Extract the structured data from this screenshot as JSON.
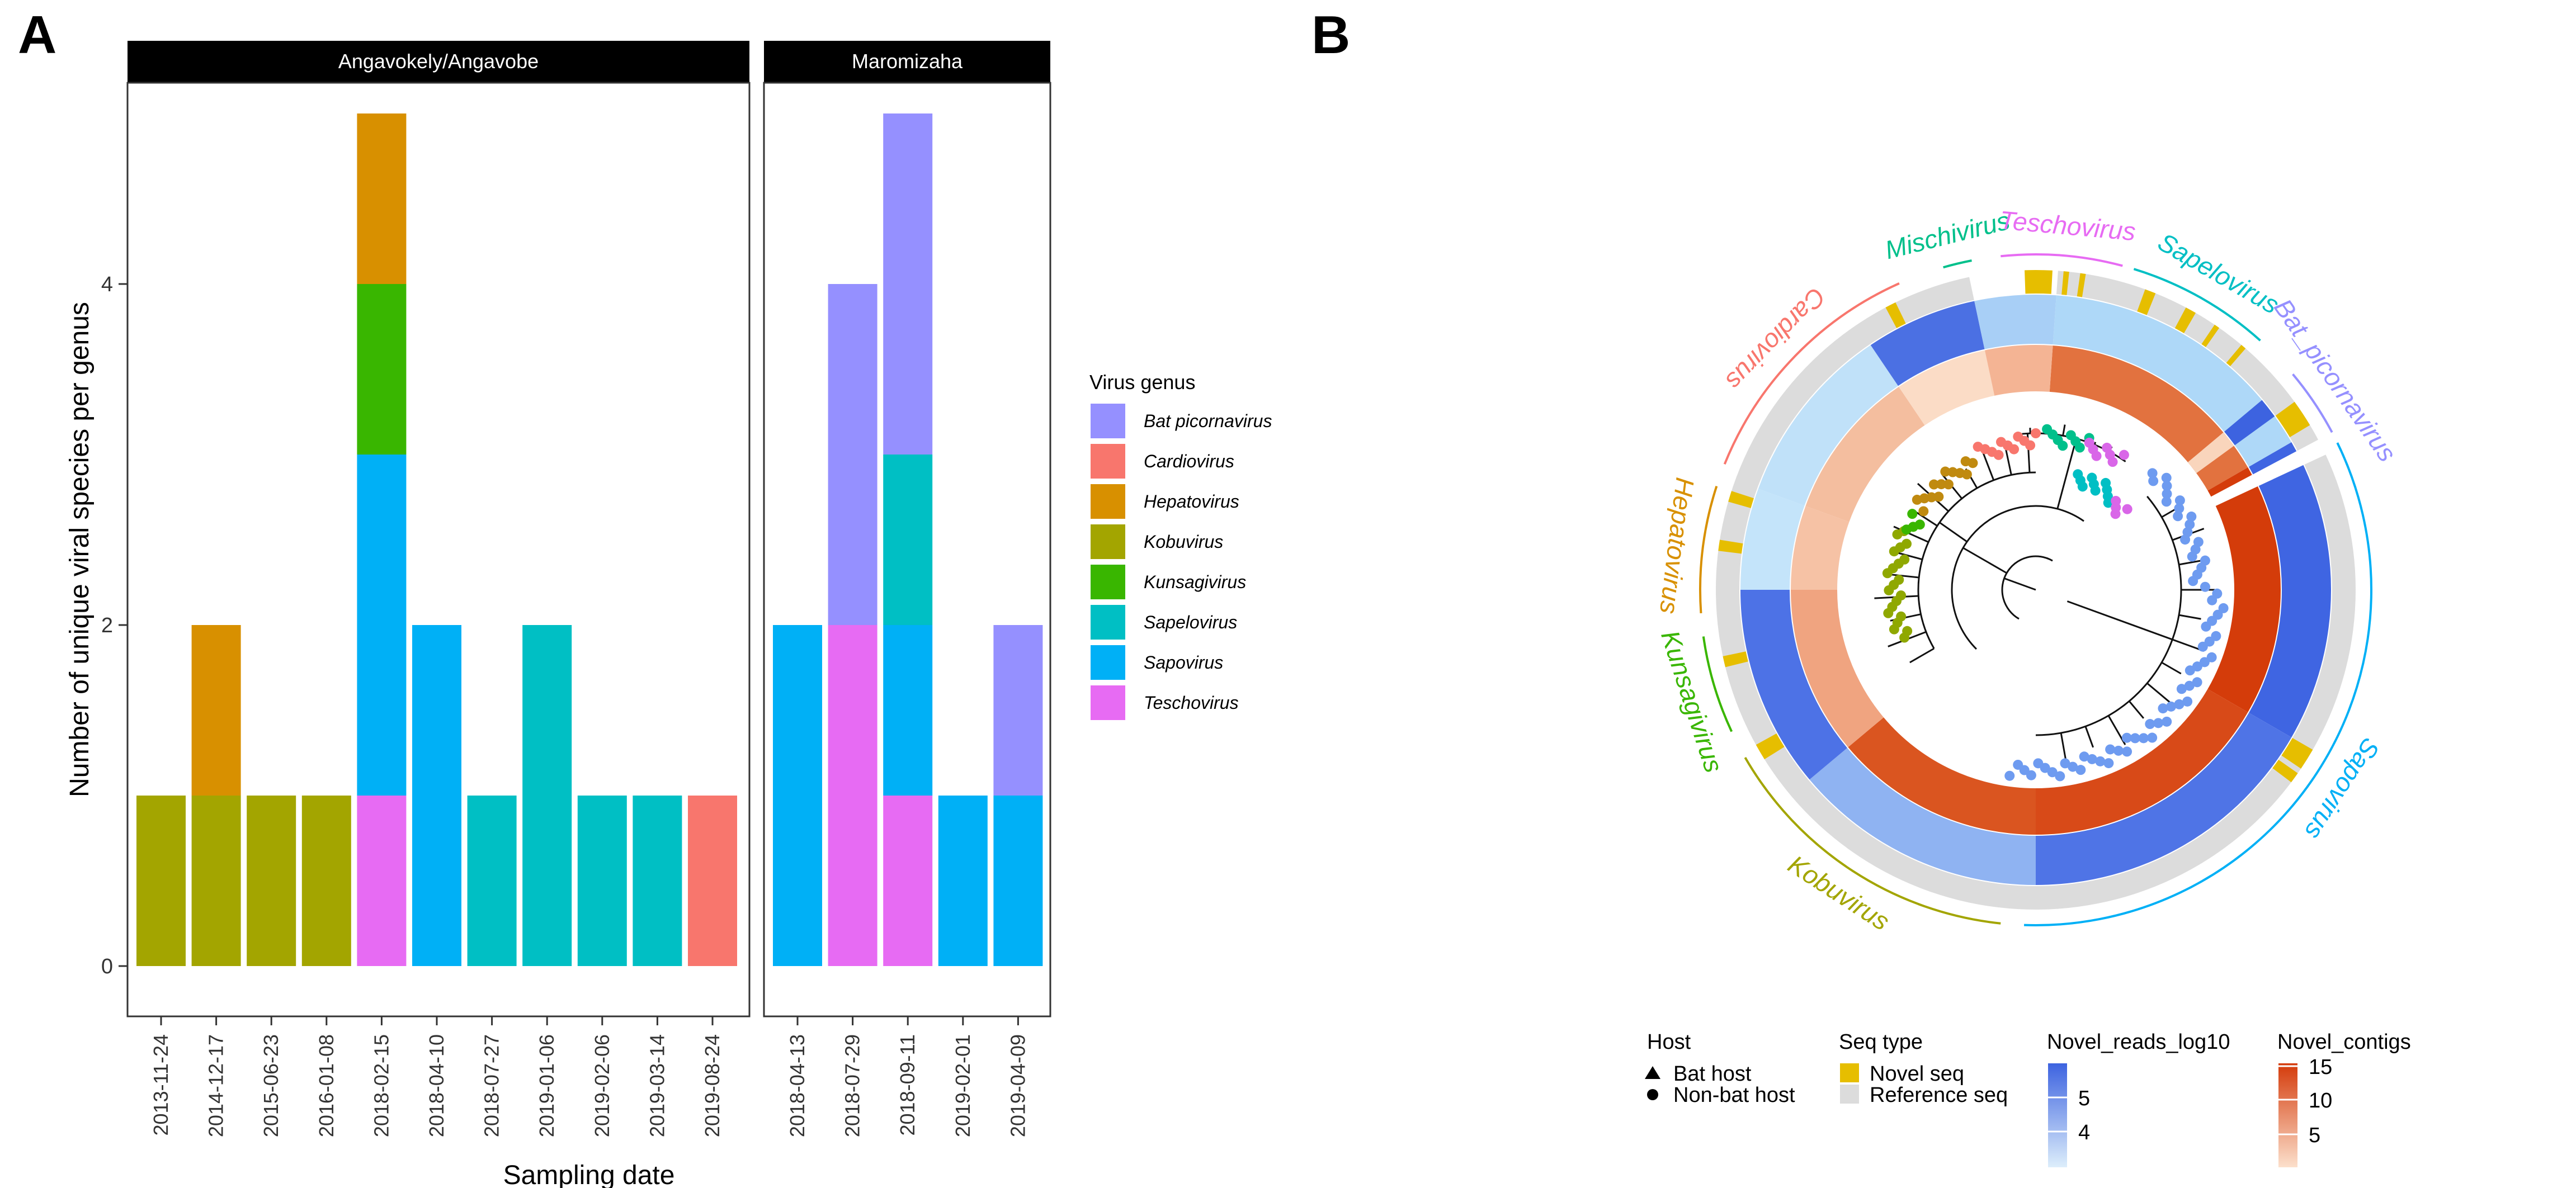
{
  "panel_labels": [
    "A",
    "B"
  ],
  "chart_data": [
    {
      "type": "bar",
      "stacked": true,
      "panel": "A",
      "ylabel": "Number of unique viral species per genus",
      "xlabel": "Sampling date",
      "ylim": [
        0,
        5.4
      ],
      "yticks": [
        0,
        2,
        4
      ],
      "grid": false,
      "legend": {
        "title": "Virus genus",
        "position": "right",
        "entries": [
          {
            "name": "Bat picornavirus",
            "color": "#9590FF"
          },
          {
            "name": "Cardiovirus",
            "color": "#F8766D"
          },
          {
            "name": "Hepatovirus",
            "color": "#D89000"
          },
          {
            "name": "Kobuvirus",
            "color": "#A3A500"
          },
          {
            "name": "Kunsagivirus",
            "color": "#39B600"
          },
          {
            "name": "Sapelovirus",
            "color": "#00BFC4"
          },
          {
            "name": "Sapovirus",
            "color": "#00B0F6"
          },
          {
            "name": "Teschovirus",
            "color": "#E76BF3"
          }
        ]
      },
      "facets": [
        {
          "title": "Angavokely/Angavobe",
          "categories": [
            "2013-11-24",
            "2014-12-17",
            "2015-06-23",
            "2016-01-08",
            "2018-02-15",
            "2018-04-10",
            "2018-07-27",
            "2019-01-06",
            "2019-02-06",
            "2019-03-14",
            "2019-08-24"
          ],
          "bars": [
            [
              [
                "Kobuvirus",
                1
              ]
            ],
            [
              [
                "Kobuvirus",
                1
              ],
              [
                "Hepatovirus",
                1
              ]
            ],
            [
              [
                "Kobuvirus",
                1
              ]
            ],
            [
              [
                "Kobuvirus",
                1
              ]
            ],
            [
              [
                "Teschovirus",
                1
              ],
              [
                "Sapovirus",
                2
              ],
              [
                "Kunsagivirus",
                1
              ],
              [
                "Hepatovirus",
                1
              ]
            ],
            [
              [
                "Sapovirus",
                2
              ]
            ],
            [
              [
                "Sapelovirus",
                1
              ]
            ],
            [
              [
                "Sapelovirus",
                2
              ]
            ],
            [
              [
                "Sapelovirus",
                1
              ]
            ],
            [
              [
                "Sapelovirus",
                1
              ]
            ],
            [
              [
                "Cardiovirus",
                1
              ]
            ]
          ]
        },
        {
          "title": "Maromizaha",
          "categories": [
            "2018-04-13",
            "2018-07-29",
            "2018-09-11",
            "2019-02-01",
            "2019-04-09"
          ],
          "bars": [
            [
              [
                "Sapovirus",
                2
              ]
            ],
            [
              [
                "Teschovirus",
                2
              ],
              [
                "Bat picornavirus",
                2
              ]
            ],
            [
              [
                "Teschovirus",
                1
              ],
              [
                "Sapovirus",
                1
              ],
              [
                "Sapelovirus",
                1
              ],
              [
                "Bat picornavirus",
                2
              ]
            ],
            [
              [
                "Sapovirus",
                1
              ]
            ],
            [
              [
                "Sapovirus",
                1
              ],
              [
                "Bat picornavirus",
                1
              ]
            ]
          ]
        }
      ]
    },
    {
      "type": "circular-tree",
      "panel": "B",
      "genus_labels": [
        {
          "name": "Mischivirus",
          "color": "#00C08B"
        },
        {
          "name": "Teschovirus",
          "color": "#E76BF3"
        },
        {
          "name": "Sapelovirus",
          "color": "#00BFC4"
        },
        {
          "name": "Bat_picornavirus",
          "color": "#9590FF"
        },
        {
          "name": "Sapovirus",
          "color": "#00B0F6"
        },
        {
          "name": "Kobuvirus",
          "color": "#A3A500"
        },
        {
          "name": "Kunsagivirus",
          "color": "#39B600"
        },
        {
          "name": "Hepatovirus",
          "color": "#D89000"
        },
        {
          "name": "Cardiovirus",
          "color": "#F8766D"
        }
      ],
      "legend": {
        "host": {
          "title": "Host",
          "items": [
            "Bat host",
            "Non-bat host"
          ]
        },
        "seq_type": {
          "title": "Seq type",
          "items": [
            {
              "label": "Novel seq",
              "color": "#E6BE00"
            },
            {
              "label": "Reference seq",
              "color": "#DCDCDC"
            }
          ]
        },
        "reads": {
          "title": "Novel_reads_log10",
          "ticks": [
            "5",
            "4"
          ]
        },
        "contigs": {
          "title": "Novel_contigs",
          "ticks": [
            "15",
            "10",
            "5"
          ]
        }
      }
    }
  ]
}
